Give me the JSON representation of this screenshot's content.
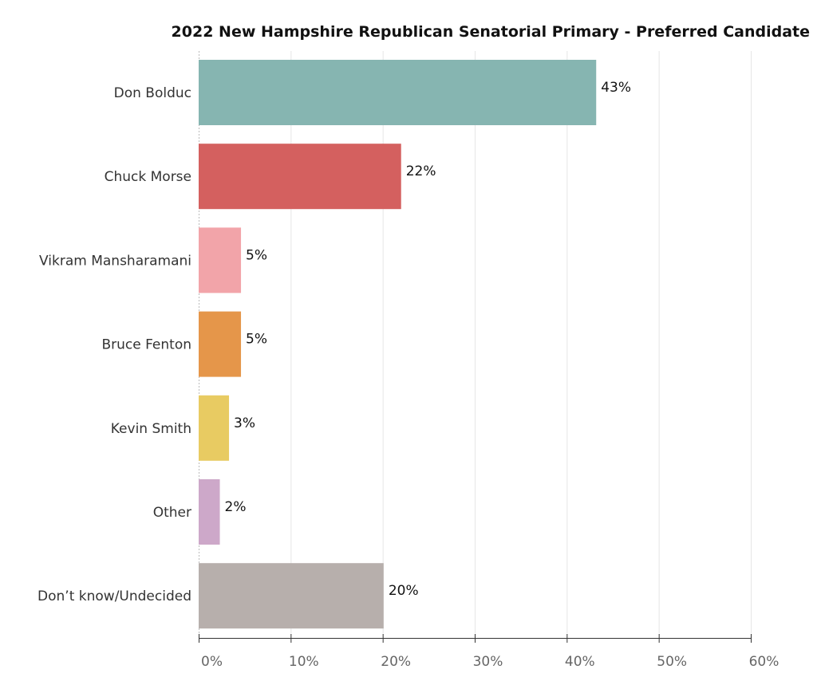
{
  "chart_data": {
    "type": "bar",
    "orientation": "horizontal",
    "title": "2022 New Hampshire Republican Senatorial Primary - Preferred Candidate",
    "categories": [
      "Don Bolduc",
      "Chuck Morse",
      "Vikram Mansharamani",
      "Bruce Fenton",
      "Kevin Smith",
      "Other",
      "Don’t know/Undecided"
    ],
    "values": [
      43,
      22,
      5,
      5,
      3,
      2,
      20
    ],
    "plotted_values": [
      43.2,
      22.0,
      4.6,
      4.6,
      3.3,
      2.3,
      20.1
    ],
    "data_labels": [
      "43%",
      "22%",
      "5%",
      "5%",
      "3%",
      "2%",
      "20%"
    ],
    "colors": [
      "#86B5B1",
      "#D4605F",
      "#F2A4A9",
      "#E5964A",
      "#E8CB62",
      "#CDA8C9",
      "#B7AFAC"
    ],
    "xlim": [
      0,
      60
    ],
    "x_ticks": [
      0,
      10,
      20,
      30,
      40,
      50,
      60
    ],
    "x_tick_labels": [
      "0%",
      "10%",
      "20%",
      "30%",
      "40%",
      "50%",
      "60%"
    ],
    "xlabel": "",
    "ylabel": "",
    "grid": "vertical"
  }
}
